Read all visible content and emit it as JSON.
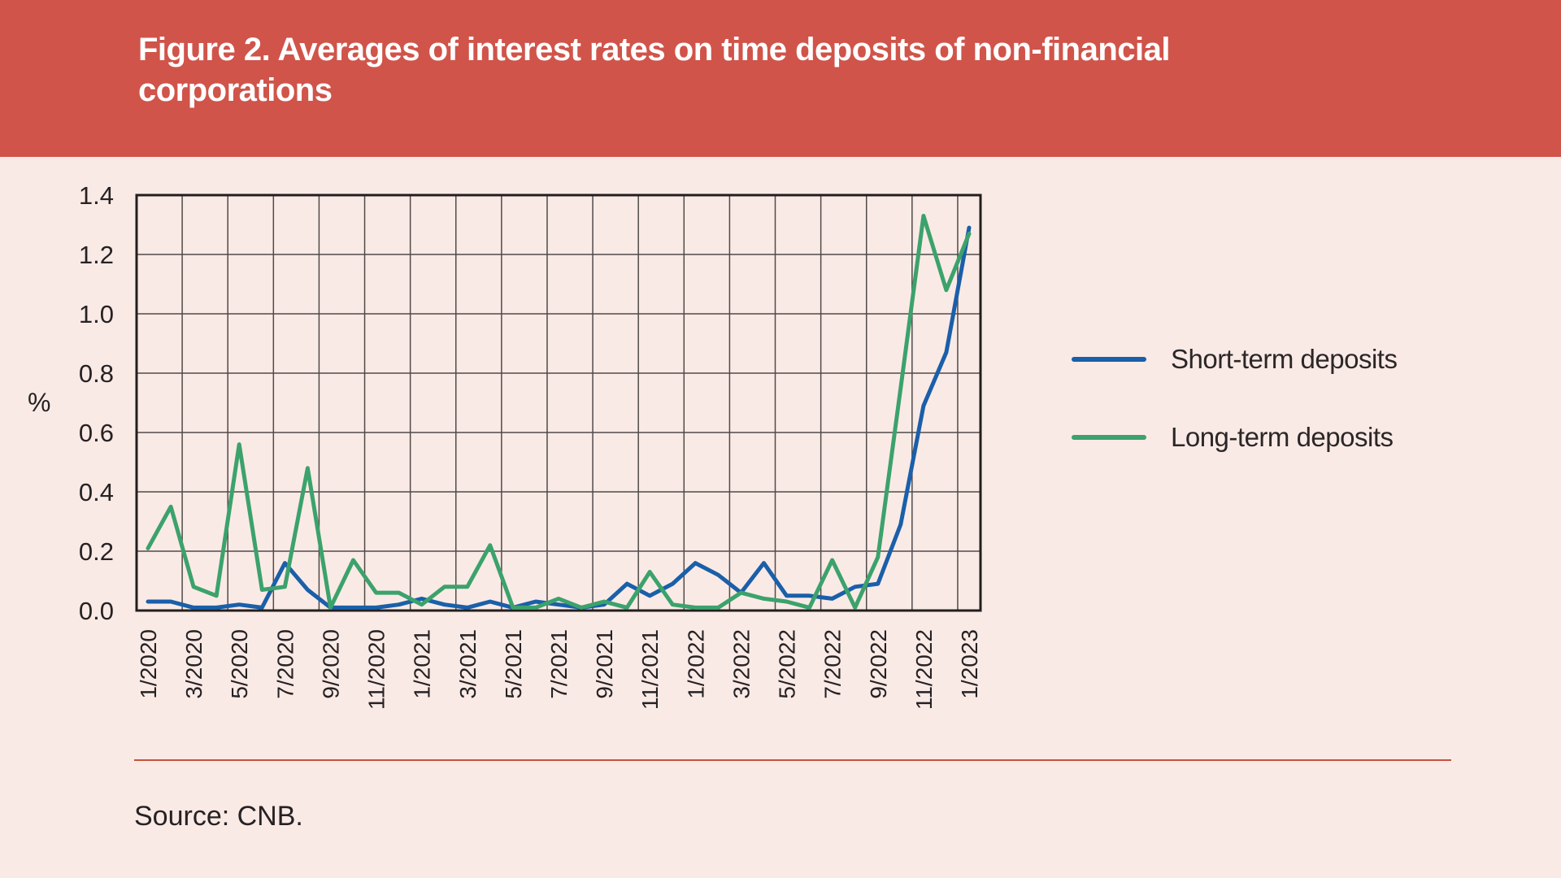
{
  "header": {
    "title": "Figure 2. Averages of interest rates on time deposits of non-financial corporations"
  },
  "chart": {
    "y_unit": "%"
  },
  "legend": [
    {
      "label": "Short-term deposits",
      "color": "#1a5fa9"
    },
    {
      "label": "Long-term deposits",
      "color": "#3ca26c"
    }
  ],
  "footer": {
    "source": "Source: CNB."
  },
  "colors": {
    "banner": "#d0544a",
    "background": "#faeae6",
    "short_term_line": "#1a5fa9",
    "long_term_line": "#3ca26c",
    "grid": "#4f4b49",
    "plot_border": "#221f1e",
    "footer_rule": "#c4523c"
  },
  "chart_data": {
    "type": "line",
    "title": "Figure 2. Averages of interest rates on time deposits of non-financial corporations",
    "xlabel": "",
    "ylabel": "%",
    "ylim": [
      0.0,
      1.4
    ],
    "y_tick_labels": [
      "1.4",
      "1.2",
      "1.0",
      "0.8",
      "0.6",
      "0.4",
      "0.2",
      "0.0"
    ],
    "x_tick_labels": [
      "1/2020",
      "3/2020",
      "5/2020",
      "7/2020",
      "9/2020",
      "11/2020",
      "1/2021",
      "3/2021",
      "5/2021",
      "7/2021",
      "9/2021",
      "11/2021",
      "1/2022",
      "3/2022",
      "5/2022",
      "7/2022",
      "9/2022",
      "11/2022",
      "1/2023"
    ],
    "x": [
      "1/2020",
      "2/2020",
      "3/2020",
      "4/2020",
      "5/2020",
      "6/2020",
      "7/2020",
      "8/2020",
      "9/2020",
      "10/2020",
      "11/2020",
      "12/2020",
      "1/2021",
      "2/2021",
      "3/2021",
      "4/2021",
      "5/2021",
      "6/2021",
      "7/2021",
      "8/2021",
      "9/2021",
      "10/2021",
      "11/2021",
      "12/2021",
      "1/2022",
      "2/2022",
      "3/2022",
      "4/2022",
      "5/2022",
      "6/2022",
      "7/2022",
      "8/2022",
      "9/2022",
      "10/2022",
      "11/2022",
      "12/2022",
      "1/2023"
    ],
    "grid": "on",
    "legend_position": "right",
    "series": [
      {
        "name": "Short-term deposits",
        "color": "#1a5fa9",
        "values": [
          0.03,
          0.03,
          0.01,
          0.01,
          0.02,
          0.01,
          0.16,
          0.07,
          0.01,
          0.01,
          0.01,
          0.02,
          0.04,
          0.02,
          0.01,
          0.03,
          0.01,
          0.03,
          0.02,
          0.01,
          0.02,
          0.09,
          0.05,
          0.09,
          0.16,
          0.12,
          0.06,
          0.16,
          0.05,
          0.05,
          0.04,
          0.08,
          0.09,
          0.29,
          0.69,
          0.87,
          1.29
        ]
      },
      {
        "name": "Long-term deposits",
        "color": "#3ca26c",
        "values": [
          0.21,
          0.35,
          0.08,
          0.05,
          0.56,
          0.07,
          0.08,
          0.48,
          0.01,
          0.17,
          0.06,
          0.06,
          0.02,
          0.08,
          0.08,
          0.22,
          0.01,
          0.01,
          0.04,
          0.01,
          0.03,
          0.01,
          0.13,
          0.02,
          0.01,
          0.01,
          0.06,
          0.04,
          0.03,
          0.01,
          0.17,
          0.01,
          0.18,
          0.75,
          1.33,
          1.08,
          1.27
        ]
      }
    ]
  }
}
